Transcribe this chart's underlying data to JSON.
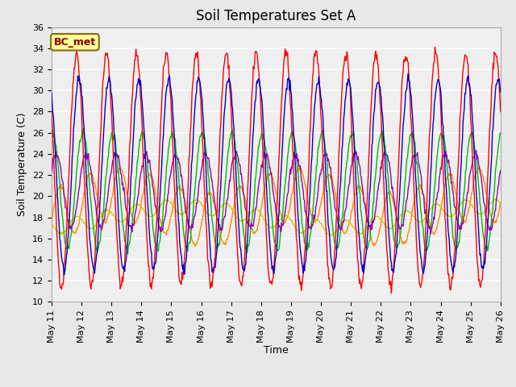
{
  "title": "Soil Temperatures Set A",
  "xlabel": "Time",
  "ylabel": "Soil Temperature (C)",
  "ylim": [
    10,
    36
  ],
  "yticks": [
    10,
    12,
    14,
    16,
    18,
    20,
    22,
    24,
    26,
    28,
    30,
    32,
    34,
    36
  ],
  "annotation_text": "BC_met",
  "annotation_color": "#8B0000",
  "annotation_bg": "#FFFF99",
  "annotation_border": "#8B6914",
  "series_colors": {
    "-2cm": "#FF0000",
    "-4cm": "#0000CC",
    "-8cm": "#00BB00",
    "-16cm": "#FF8800",
    "-32cm": "#CCCC00",
    "Theta_Temp": "#9900AA"
  },
  "n_days": 15,
  "samples_per_day": 48,
  "background_color": "#E8E8E8",
  "plot_bg": "#EFEFEF",
  "grid_color": "#FFFFFF",
  "title_fontsize": 12,
  "label_fontsize": 9,
  "tick_fontsize": 8,
  "legend_fontsize": 9
}
